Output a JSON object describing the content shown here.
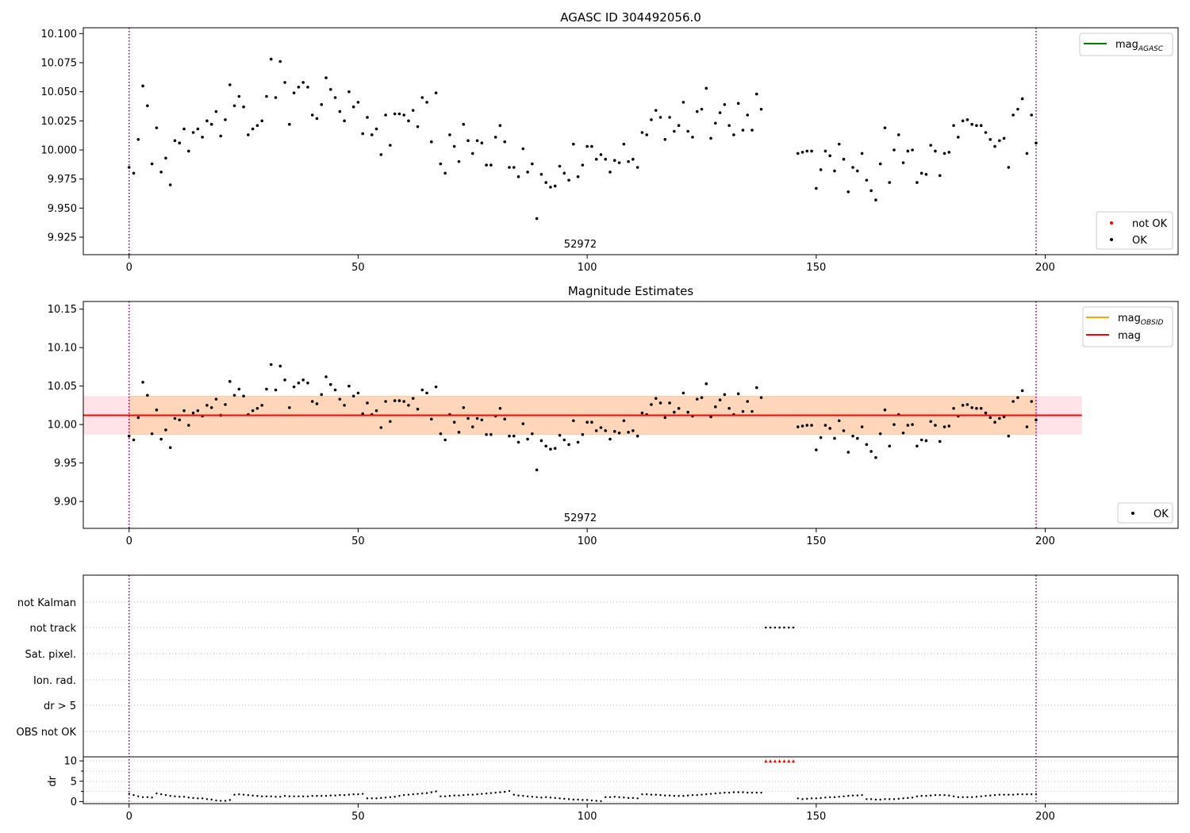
{
  "chart_data": [
    {
      "type": "scatter",
      "title": "AGASC ID 304492056.0",
      "annotation": "52972",
      "xlim": [
        -10,
        229
      ],
      "ylim": [
        9.91,
        10.105
      ],
      "xticks": [
        0,
        50,
        100,
        150,
        200
      ],
      "yticks": [
        9.925,
        9.95,
        9.975,
        10.0,
        10.025,
        10.05,
        10.075,
        10.1
      ],
      "ytick_labels": [
        "9.925",
        "9.950",
        "9.975",
        "10.000",
        "10.025",
        "10.050",
        "10.075",
        "10.100"
      ],
      "vlines": [
        0,
        198
      ],
      "legend_top": [
        {
          "name": "mag",
          "sub": "AGASC",
          "color": "#008000"
        }
      ],
      "legend_bottom": [
        {
          "name": "not OK",
          "color": "#ff0000"
        },
        {
          "name": "OK",
          "color": "#000000"
        }
      ]
    },
    {
      "type": "scatter",
      "title": "Magnitude Estimates",
      "annotation": "52972",
      "xlim": [
        -10,
        229
      ],
      "ylim": [
        9.865,
        10.16
      ],
      "xticks": [
        0,
        50,
        100,
        150,
        200
      ],
      "yticks": [
        9.9,
        9.95,
        10.0,
        10.05,
        10.1,
        10.15
      ],
      "ytick_labels": [
        "9.90",
        "9.95",
        "10.00",
        "10.05",
        "10.10",
        "10.15"
      ],
      "vlines": [
        0,
        198
      ],
      "mag_line": 10.012,
      "mag_band": [
        9.987,
        10.037
      ],
      "band_xrange": [
        -10,
        208
      ],
      "legend_top": [
        {
          "name": "mag",
          "sub": "OBSID",
          "color": "#ffa500"
        },
        {
          "name": "mag",
          "sub": "",
          "color": "#ff0000"
        }
      ],
      "legend_bottom": [
        {
          "name": "OK",
          "color": "#000000"
        }
      ]
    },
    {
      "type": "scatter",
      "xlim": [
        -10,
        229
      ],
      "category_labels": [
        "not Kalman",
        "not track",
        "Sat. pixel.",
        "Ion. rad.",
        "dr > 5",
        "OBS not OK"
      ],
      "not_track_range": [
        139,
        145
      ],
      "dr_ylabel": "dr",
      "dr_ylim": [
        -0.5,
        11
      ],
      "dr_yticks": [
        0,
        5,
        10
      ],
      "dr_ytick_labels": [
        "0",
        "5",
        "10"
      ],
      "dr_highlight_range": [
        139,
        145
      ],
      "dr_highlight_value": 10,
      "xticks": [
        0,
        50,
        100,
        150,
        200
      ],
      "vlines": [
        0,
        198
      ]
    }
  ],
  "series": {
    "mag": [
      [
        0,
        9.985
      ],
      [
        1,
        9.98
      ],
      [
        2,
        10.009
      ],
      [
        3,
        10.055
      ],
      [
        4,
        10.038
      ],
      [
        5,
        9.988
      ],
      [
        6,
        10.019
      ],
      [
        7,
        9.981
      ],
      [
        8,
        9.993
      ],
      [
        9,
        9.97
      ],
      [
        10,
        10.008
      ],
      [
        11,
        10.006
      ],
      [
        12,
        10.018
      ],
      [
        13,
        9.999
      ],
      [
        14,
        10.015
      ],
      [
        15,
        10.018
      ],
      [
        16,
        10.011
      ],
      [
        17,
        10.025
      ],
      [
        18,
        10.022
      ],
      [
        19,
        10.033
      ],
      [
        20,
        10.012
      ],
      [
        21,
        10.026
      ],
      [
        22,
        10.056
      ],
      [
        23,
        10.038
      ],
      [
        24,
        10.046
      ],
      [
        25,
        10.037
      ],
      [
        26,
        10.013
      ],
      [
        27,
        10.018
      ],
      [
        28,
        10.021
      ],
      [
        29,
        10.025
      ],
      [
        30,
        10.046
      ],
      [
        31,
        10.078
      ],
      [
        32,
        10.045
      ],
      [
        33,
        10.076
      ],
      [
        34,
        10.058
      ],
      [
        35,
        10.022
      ],
      [
        36,
        10.049
      ],
      [
        37,
        10.054
      ],
      [
        38,
        10.058
      ],
      [
        39,
        10.054
      ],
      [
        40,
        10.03
      ],
      [
        41,
        10.027
      ],
      [
        42,
        10.039
      ],
      [
        43,
        10.062
      ],
      [
        44,
        10.052
      ],
      [
        45,
        10.045
      ],
      [
        46,
        10.033
      ],
      [
        47,
        10.025
      ],
      [
        48,
        10.05
      ],
      [
        49,
        10.037
      ],
      [
        50,
        10.041
      ],
      [
        51,
        10.014
      ],
      [
        52,
        10.028
      ],
      [
        53,
        10.013
      ],
      [
        54,
        10.018
      ],
      [
        55,
        9.996
      ],
      [
        56,
        10.03
      ],
      [
        57,
        10.004
      ],
      [
        58,
        10.031
      ],
      [
        59,
        10.031
      ],
      [
        60,
        10.03
      ],
      [
        61,
        10.025
      ],
      [
        62,
        10.034
      ],
      [
        63,
        10.02
      ],
      [
        64,
        10.045
      ],
      [
        65,
        10.041
      ],
      [
        66,
        10.007
      ],
      [
        67,
        10.049
      ],
      [
        68,
        9.988
      ],
      [
        69,
        9.98
      ],
      [
        70,
        10.013
      ],
      [
        71,
        10.003
      ],
      [
        72,
        9.99
      ],
      [
        73,
        10.022
      ],
      [
        74,
        10.008
      ],
      [
        75,
        9.997
      ],
      [
        76,
        10.008
      ],
      [
        77,
        10.006
      ],
      [
        78,
        9.987
      ],
      [
        79,
        9.987
      ],
      [
        80,
        10.011
      ],
      [
        81,
        10.021
      ],
      [
        82,
        10.007
      ],
      [
        83,
        9.985
      ],
      [
        84,
        9.985
      ],
      [
        85,
        9.977
      ],
      [
        86,
        10.001
      ],
      [
        87,
        9.981
      ],
      [
        88,
        9.988
      ],
      [
        89,
        9.941
      ],
      [
        90,
        9.979
      ],
      [
        91,
        9.972
      ],
      [
        92,
        9.968
      ],
      [
        93,
        9.969
      ],
      [
        94,
        9.986
      ],
      [
        95,
        9.98
      ],
      [
        96,
        9.974
      ],
      [
        97,
        10.005
      ],
      [
        98,
        9.977
      ],
      [
        99,
        9.987
      ],
      [
        100,
        10.003
      ],
      [
        101,
        10.003
      ],
      [
        102,
        9.992
      ],
      [
        103,
        9.996
      ],
      [
        104,
        9.992
      ],
      [
        105,
        9.981
      ],
      [
        106,
        9.991
      ],
      [
        107,
        9.989
      ],
      [
        108,
        10.005
      ],
      [
        109,
        9.99
      ],
      [
        110,
        9.992
      ],
      [
        111,
        9.985
      ],
      [
        112,
        10.015
      ],
      [
        113,
        10.013
      ],
      [
        114,
        10.026
      ],
      [
        115,
        10.034
      ],
      [
        116,
        10.028
      ],
      [
        117,
        10.009
      ],
      [
        118,
        10.028
      ],
      [
        119,
        10.016
      ],
      [
        120,
        10.021
      ],
      [
        121,
        10.041
      ],
      [
        122,
        10.016
      ],
      [
        123,
        10.011
      ],
      [
        124,
        10.033
      ],
      [
        125,
        10.035
      ],
      [
        126,
        10.053
      ],
      [
        127,
        10.01
      ],
      [
        128,
        10.023
      ],
      [
        129,
        10.032
      ],
      [
        130,
        10.039
      ],
      [
        131,
        10.021
      ],
      [
        132,
        10.013
      ],
      [
        133,
        10.04
      ],
      [
        134,
        10.017
      ],
      [
        135,
        10.03
      ],
      [
        136,
        10.017
      ],
      [
        137,
        10.048
      ],
      [
        138,
        10.035
      ],
      [
        146,
        9.997
      ],
      [
        147,
        9.998
      ],
      [
        148,
        9.999
      ],
      [
        149,
        9.999
      ],
      [
        150,
        9.967
      ],
      [
        151,
        9.983
      ],
      [
        152,
        9.999
      ],
      [
        153,
        9.995
      ],
      [
        154,
        9.982
      ],
      [
        155,
        10.005
      ],
      [
        156,
        9.992
      ],
      [
        157,
        9.964
      ],
      [
        158,
        9.985
      ],
      [
        159,
        9.982
      ],
      [
        160,
        9.997
      ],
      [
        161,
        9.974
      ],
      [
        162,
        9.965
      ],
      [
        163,
        9.957
      ],
      [
        164,
        9.988
      ],
      [
        165,
        10.019
      ],
      [
        166,
        9.972
      ],
      [
        167,
        10.0
      ],
      [
        168,
        10.013
      ],
      [
        169,
        9.989
      ],
      [
        170,
        9.999
      ],
      [
        171,
        10.0
      ],
      [
        172,
        9.972
      ],
      [
        173,
        9.98
      ],
      [
        174,
        9.979
      ],
      [
        175,
        10.004
      ],
      [
        176,
        9.999
      ],
      [
        177,
        9.978
      ],
      [
        178,
        9.997
      ],
      [
        179,
        9.998
      ],
      [
        180,
        10.021
      ],
      [
        181,
        10.011
      ],
      [
        182,
        10.025
      ],
      [
        183,
        10.026
      ],
      [
        184,
        10.022
      ],
      [
        185,
        10.021
      ],
      [
        186,
        10.021
      ],
      [
        187,
        10.015
      ],
      [
        188,
        10.009
      ],
      [
        189,
        10.003
      ],
      [
        190,
        10.008
      ],
      [
        191,
        10.01
      ],
      [
        192,
        9.985
      ],
      [
        193,
        10.03
      ],
      [
        194,
        10.035
      ],
      [
        195,
        10.044
      ],
      [
        196,
        9.997
      ],
      [
        197,
        10.03
      ],
      [
        198,
        10.006
      ]
    ],
    "dr": [
      [
        0,
        1.9
      ],
      [
        1,
        1.6
      ],
      [
        2,
        1.3
      ],
      [
        3,
        1.1
      ],
      [
        4,
        1.1
      ],
      [
        5,
        1.0
      ],
      [
        6,
        2.0
      ],
      [
        7,
        1.8
      ],
      [
        8,
        1.6
      ],
      [
        9,
        1.4
      ],
      [
        10,
        1.3
      ],
      [
        11,
        1.2
      ],
      [
        12,
        1.2
      ],
      [
        13,
        1.0
      ],
      [
        14,
        0.9
      ],
      [
        15,
        0.8
      ],
      [
        16,
        0.8
      ],
      [
        17,
        0.6
      ],
      [
        18,
        0.5
      ],
      [
        19,
        0.3
      ],
      [
        20,
        0.2
      ],
      [
        21,
        0.2
      ],
      [
        22,
        0.4
      ],
      [
        23,
        1.7
      ],
      [
        24,
        1.8
      ],
      [
        25,
        1.7
      ],
      [
        26,
        1.6
      ],
      [
        27,
        1.5
      ],
      [
        28,
        1.4
      ],
      [
        29,
        1.3
      ],
      [
        30,
        1.3
      ],
      [
        31,
        1.3
      ],
      [
        32,
        1.2
      ],
      [
        33,
        1.2
      ],
      [
        34,
        1.4
      ],
      [
        35,
        1.3
      ],
      [
        36,
        1.3
      ],
      [
        37,
        1.3
      ],
      [
        38,
        1.3
      ],
      [
        39,
        1.3
      ],
      [
        40,
        1.4
      ],
      [
        41,
        1.4
      ],
      [
        42,
        1.4
      ],
      [
        43,
        1.4
      ],
      [
        44,
        1.5
      ],
      [
        45,
        1.5
      ],
      [
        46,
        1.6
      ],
      [
        47,
        1.6
      ],
      [
        48,
        1.7
      ],
      [
        49,
        1.8
      ],
      [
        50,
        1.8
      ],
      [
        51,
        1.9
      ],
      [
        52,
        0.8
      ],
      [
        53,
        0.8
      ],
      [
        54,
        0.8
      ],
      [
        55,
        0.9
      ],
      [
        56,
        1.0
      ],
      [
        57,
        1.1
      ],
      [
        58,
        1.2
      ],
      [
        59,
        1.4
      ],
      [
        60,
        1.6
      ],
      [
        61,
        1.7
      ],
      [
        62,
        1.8
      ],
      [
        63,
        1.9
      ],
      [
        64,
        2.0
      ],
      [
        65,
        2.1
      ],
      [
        66,
        2.3
      ],
      [
        67,
        2.5
      ],
      [
        68,
        1.3
      ],
      [
        69,
        1.3
      ],
      [
        70,
        1.4
      ],
      [
        71,
        1.5
      ],
      [
        72,
        1.5
      ],
      [
        73,
        1.6
      ],
      [
        74,
        1.7
      ],
      [
        75,
        1.7
      ],
      [
        76,
        1.8
      ],
      [
        77,
        1.9
      ],
      [
        78,
        2.0
      ],
      [
        79,
        2.1
      ],
      [
        80,
        2.2
      ],
      [
        81,
        2.3
      ],
      [
        82,
        2.4
      ],
      [
        83,
        2.6
      ],
      [
        84,
        1.7
      ],
      [
        85,
        1.5
      ],
      [
        86,
        1.4
      ],
      [
        87,
        1.3
      ],
      [
        88,
        1.2
      ],
      [
        89,
        1.1
      ],
      [
        90,
        1.0
      ],
      [
        91,
        1.1
      ],
      [
        92,
        1.0
      ],
      [
        93,
        0.9
      ],
      [
        94,
        0.8
      ],
      [
        95,
        0.7
      ],
      [
        96,
        0.6
      ],
      [
        97,
        0.5
      ],
      [
        98,
        0.5
      ],
      [
        99,
        0.4
      ],
      [
        100,
        0.4
      ],
      [
        101,
        0.3
      ],
      [
        102,
        0.2
      ],
      [
        103,
        0.1
      ],
      [
        104,
        1.1
      ],
      [
        105,
        1.1
      ],
      [
        106,
        1.2
      ],
      [
        107,
        1.1
      ],
      [
        108,
        1.0
      ],
      [
        109,
        0.9
      ],
      [
        110,
        0.9
      ],
      [
        111,
        0.8
      ],
      [
        112,
        1.8
      ],
      [
        113,
        1.8
      ],
      [
        114,
        1.7
      ],
      [
        115,
        1.7
      ],
      [
        116,
        1.6
      ],
      [
        117,
        1.5
      ],
      [
        118,
        1.5
      ],
      [
        119,
        1.4
      ],
      [
        120,
        1.4
      ],
      [
        121,
        1.4
      ],
      [
        122,
        1.5
      ],
      [
        123,
        1.6
      ],
      [
        124,
        1.6
      ],
      [
        125,
        1.7
      ],
      [
        126,
        1.8
      ],
      [
        127,
        1.9
      ],
      [
        128,
        2.0
      ],
      [
        129,
        2.1
      ],
      [
        130,
        2.2
      ],
      [
        131,
        2.2
      ],
      [
        132,
        2.3
      ],
      [
        133,
        2.3
      ],
      [
        134,
        2.3
      ],
      [
        135,
        2.2
      ],
      [
        136,
        2.2
      ],
      [
        137,
        2.2
      ],
      [
        138,
        2.2
      ],
      [
        146,
        0.8
      ],
      [
        147,
        0.6
      ],
      [
        148,
        0.7
      ],
      [
        149,
        0.8
      ],
      [
        150,
        0.8
      ],
      [
        151,
        0.9
      ],
      [
        152,
        1.0
      ],
      [
        153,
        1.1
      ],
      [
        154,
        1.1
      ],
      [
        155,
        1.2
      ],
      [
        156,
        1.3
      ],
      [
        157,
        1.4
      ],
      [
        158,
        1.5
      ],
      [
        159,
        1.5
      ],
      [
        160,
        1.6
      ],
      [
        161,
        0.6
      ],
      [
        162,
        0.6
      ],
      [
        163,
        0.5
      ],
      [
        164,
        0.5
      ],
      [
        165,
        0.6
      ],
      [
        166,
        0.6
      ],
      [
        167,
        0.6
      ],
      [
        168,
        0.7
      ],
      [
        169,
        0.8
      ],
      [
        170,
        0.9
      ],
      [
        171,
        1.0
      ],
      [
        172,
        1.3
      ],
      [
        173,
        1.4
      ],
      [
        174,
        1.4
      ],
      [
        175,
        1.5
      ],
      [
        176,
        1.6
      ],
      [
        177,
        1.6
      ],
      [
        178,
        1.6
      ],
      [
        179,
        1.5
      ],
      [
        180,
        1.3
      ],
      [
        181,
        1.1
      ],
      [
        182,
        1.1
      ],
      [
        183,
        1.1
      ],
      [
        184,
        1.1
      ],
      [
        185,
        1.2
      ],
      [
        186,
        1.3
      ],
      [
        187,
        1.4
      ],
      [
        188,
        1.5
      ],
      [
        189,
        1.6
      ],
      [
        190,
        1.7
      ],
      [
        191,
        1.7
      ],
      [
        192,
        1.7
      ],
      [
        193,
        1.7
      ],
      [
        194,
        1.8
      ],
      [
        195,
        1.8
      ],
      [
        196,
        1.8
      ],
      [
        197,
        1.8
      ],
      [
        198,
        1.8
      ]
    ]
  }
}
